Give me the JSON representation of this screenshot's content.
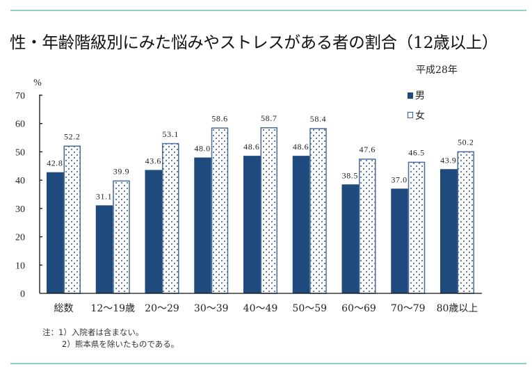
{
  "title": "性・年齢階級別にみた悩みやストレスがある者の割合（12歳以上）",
  "subtitle": "平成28年",
  "notes": {
    "prefix": "注：",
    "items": [
      "1）入院者は含まない。",
      "2）熊本県を除いたものである。"
    ]
  },
  "colors": {
    "male": "#1f4a7d",
    "female_border": "#4a6b99",
    "female_dot": "#5a7bab",
    "rule": "#8ecfca"
  },
  "chart_data": {
    "type": "bar",
    "title": "性・年齢階級別にみた悩みやストレスがある者の割合（12歳以上）",
    "ylabel": "%",
    "xlabel": "",
    "ylim": [
      0,
      70
    ],
    "yticks": [
      0,
      10,
      20,
      30,
      40,
      50,
      60,
      70
    ],
    "grid": false,
    "legend_position": "top-right",
    "categories": [
      "総数",
      "12～19歳",
      "20～29",
      "30～39",
      "40～49",
      "50～59",
      "60～69",
      "70～79",
      "80歳以上"
    ],
    "series": [
      {
        "name": "男",
        "values": [
          42.8,
          31.1,
          43.6,
          48.0,
          48.6,
          48.6,
          38.5,
          37.0,
          43.9
        ],
        "labels": [
          "42.8",
          "31.1",
          "43.6",
          "48.0",
          "48.6",
          "48.6",
          "38.5",
          "37.0",
          "43.9"
        ]
      },
      {
        "name": "女",
        "values": [
          52.2,
          39.9,
          53.1,
          58.6,
          58.7,
          58.4,
          47.6,
          46.5,
          50.2
        ],
        "labels": [
          "52.2",
          "39.9",
          "53.1",
          "58.6",
          "58.7",
          "58.4",
          "47.6",
          "46.5",
          "50.2"
        ]
      }
    ]
  }
}
